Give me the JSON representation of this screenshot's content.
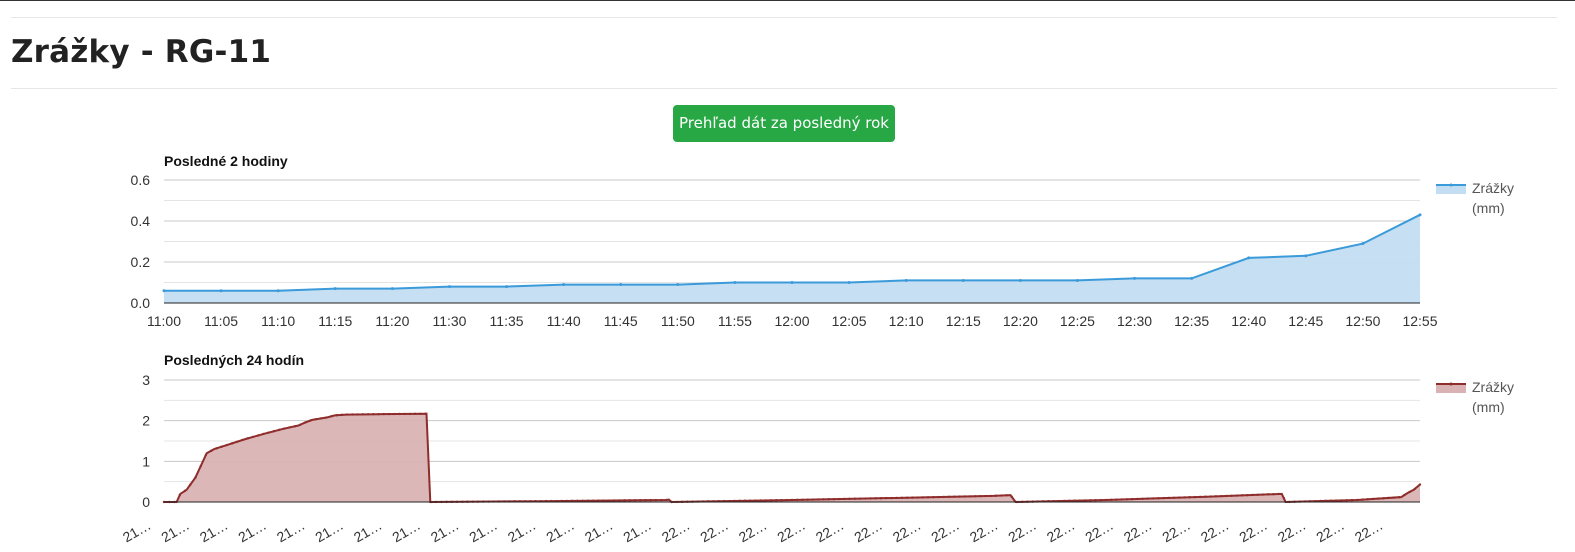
{
  "page": {
    "title": "Zrážky - RG-11",
    "year_button_label": "Prehľad dát za posledný rok"
  },
  "colors": {
    "button_green": "#28a745",
    "series_blue": "#3b9ad9",
    "series_blue_fill": "#c3ddf2",
    "series_red": "#8f2c2c",
    "series_red_fill": "#d9b3b3"
  },
  "chart_data": [
    {
      "type": "area",
      "title": "Posledné 2 hodiny",
      "ylim": [
        0,
        0.6
      ],
      "yticks": [
        "0.0",
        "0.2",
        "0.4",
        "0.6"
      ],
      "grid": true,
      "legend_position": "right",
      "legend": [
        "Zrážky",
        "(mm)"
      ],
      "categories": [
        "11:00",
        "11:05",
        "11:10",
        "11:15",
        "11:20",
        "11:30",
        "11:35",
        "11:40",
        "11:45",
        "11:50",
        "11:55",
        "12:00",
        "12:05",
        "12:10",
        "12:15",
        "12:20",
        "12:25",
        "12:30",
        "12:35",
        "12:40",
        "12:45",
        "12:50",
        "12:55"
      ],
      "series": [
        {
          "name": "Zrážky (mm)",
          "values": [
            0.06,
            0.06,
            0.06,
            0.07,
            0.07,
            0.08,
            0.08,
            0.09,
            0.09,
            0.09,
            0.1,
            0.1,
            0.1,
            0.11,
            0.11,
            0.11,
            0.11,
            0.12,
            0.12,
            0.22,
            0.23,
            0.29,
            0.43
          ]
        }
      ]
    },
    {
      "type": "area",
      "title": "Posledných 24 hodín",
      "ylim": [
        0,
        3
      ],
      "yticks": [
        "0",
        "1",
        "2",
        "3"
      ],
      "grid": true,
      "legend_position": "right",
      "legend": [
        "Zrážky",
        "(mm)"
      ],
      "xtick_labels": [
        "21…",
        "21…",
        "21…",
        "21…",
        "21…",
        "21…",
        "21…",
        "21…",
        "21…",
        "21…",
        "21…",
        "21…",
        "21…",
        "21…",
        "22…",
        "22…",
        "22…",
        "22…",
        "22…",
        "22…",
        "22…",
        "22…",
        "22…",
        "22…",
        "22…",
        "22…",
        "22…",
        "22…",
        "22…",
        "22…",
        "22…",
        "22…",
        "22…"
      ],
      "series": [
        {
          "name": "Zrážky (mm)",
          "profile": [
            {
              "frac": 0.0,
              "value": 0.0
            },
            {
              "frac": 0.01,
              "value": 0.0
            },
            {
              "frac": 0.013,
              "value": 0.2
            },
            {
              "frac": 0.018,
              "value": 0.3
            },
            {
              "frac": 0.025,
              "value": 0.6
            },
            {
              "frac": 0.034,
              "value": 1.2
            },
            {
              "frac": 0.04,
              "value": 1.3
            },
            {
              "frac": 0.05,
              "value": 1.4
            },
            {
              "frac": 0.065,
              "value": 1.55
            },
            {
              "frac": 0.08,
              "value": 1.68
            },
            {
              "frac": 0.095,
              "value": 1.8
            },
            {
              "frac": 0.107,
              "value": 1.88
            },
            {
              "frac": 0.112,
              "value": 1.95
            },
            {
              "frac": 0.118,
              "value": 2.02
            },
            {
              "frac": 0.13,
              "value": 2.08
            },
            {
              "frac": 0.136,
              "value": 2.13
            },
            {
              "frac": 0.145,
              "value": 2.15
            },
            {
              "frac": 0.17,
              "value": 2.16
            },
            {
              "frac": 0.209,
              "value": 2.17
            },
            {
              "frac": 0.212,
              "value": 0.0
            },
            {
              "frac": 0.3,
              "value": 0.02
            },
            {
              "frac": 0.4,
              "value": 0.05
            },
            {
              "frac": 0.402,
              "value": 0.06
            },
            {
              "frac": 0.404,
              "value": 0.0
            },
            {
              "frac": 0.5,
              "value": 0.05
            },
            {
              "frac": 0.6,
              "value": 0.11
            },
            {
              "frac": 0.66,
              "value": 0.15
            },
            {
              "frac": 0.674,
              "value": 0.17
            },
            {
              "frac": 0.678,
              "value": 0.0
            },
            {
              "frac": 0.75,
              "value": 0.05
            },
            {
              "frac": 0.83,
              "value": 0.13
            },
            {
              "frac": 0.89,
              "value": 0.2
            },
            {
              "frac": 0.893,
              "value": 0.0
            },
            {
              "frac": 0.95,
              "value": 0.05
            },
            {
              "frac": 0.985,
              "value": 0.12
            },
            {
              "frac": 0.99,
              "value": 0.22
            },
            {
              "frac": 0.995,
              "value": 0.3
            },
            {
              "frac": 1.0,
              "value": 0.43
            }
          ]
        }
      ]
    }
  ]
}
